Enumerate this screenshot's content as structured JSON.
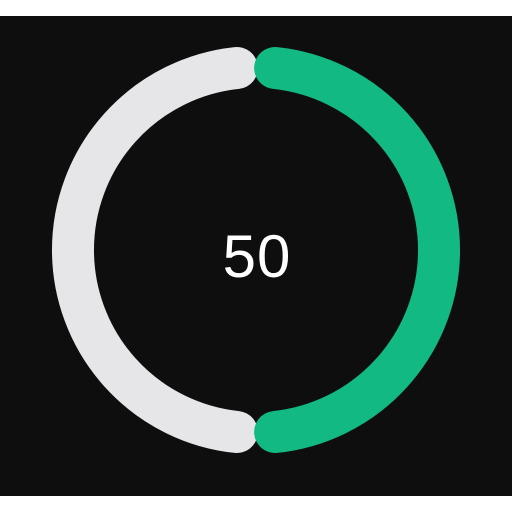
{
  "gauge": {
    "value_label": "50",
    "value": 50,
    "max": 100,
    "progress_fraction": 0.5
  },
  "colors": {
    "page_background": "#ffffff",
    "panel_background": "#0e0e0e",
    "progress": "#13b982",
    "track": "#e6e6e9",
    "value_text": "#ffffff"
  }
}
